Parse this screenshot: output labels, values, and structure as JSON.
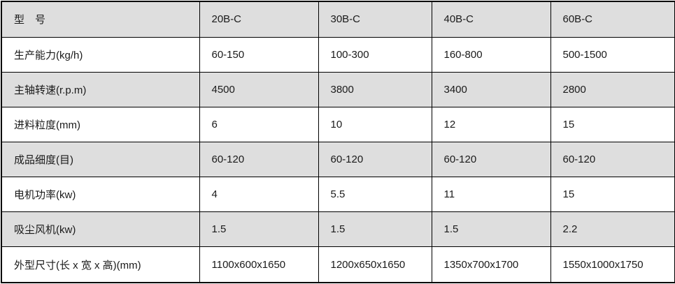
{
  "table": {
    "header": {
      "label": "型　号",
      "models": [
        "20B-C",
        "30B-C",
        "40B-C",
        "60B-C"
      ]
    },
    "rows": [
      {
        "label": "生产能力(kg/h)",
        "values": [
          "60-150",
          "100-300",
          "160-800",
          "500-1500"
        ]
      },
      {
        "label": "主轴转速(r.p.m)",
        "values": [
          "4500",
          "3800",
          "3400",
          "2800"
        ]
      },
      {
        "label": "进料粒度(mm)",
        "values": [
          "6",
          "10",
          "12",
          "15"
        ]
      },
      {
        "label": "成品细度(目)",
        "values": [
          "60-120",
          "60-120",
          "60-120",
          "60-120"
        ]
      },
      {
        "label": "电机功率(kw)",
        "values": [
          "4",
          "5.5",
          "11",
          "15"
        ]
      },
      {
        "label": "吸尘风机(kw)",
        "values": [
          "1.5",
          "1.5",
          "1.5",
          "2.2"
        ]
      },
      {
        "label": "外型尺寸(长 x 宽 x 高)(mm)",
        "values": [
          "1100x600x1650",
          "1200x650x1650",
          "1350x700x1700",
          "1550x1000x1750"
        ]
      }
    ],
    "colors": {
      "shaded_row_bg": "#dedede",
      "plain_row_bg": "#ffffff",
      "border": "#000000",
      "text": "#1a1a1a"
    }
  },
  "chart_data": {
    "type": "table",
    "title": "",
    "columns": [
      "型　号",
      "20B-C",
      "30B-C",
      "40B-C",
      "60B-C"
    ],
    "rows": [
      [
        "生产能力(kg/h)",
        "60-150",
        "100-300",
        "160-800",
        "500-1500"
      ],
      [
        "主轴转速(r.p.m)",
        "4500",
        "3800",
        "3400",
        "2800"
      ],
      [
        "进料粒度(mm)",
        "6",
        "10",
        "12",
        "15"
      ],
      [
        "成品细度(目)",
        "60-120",
        "60-120",
        "60-120",
        "60-120"
      ],
      [
        "电机功率(kw)",
        "4",
        "5.5",
        "11",
        "15"
      ],
      [
        "吸尘风机(kw)",
        "1.5",
        "1.5",
        "1.5",
        "2.2"
      ],
      [
        "外型尺寸(长 x 宽 x 高)(mm)",
        "1100x600x1650",
        "1200x650x1650",
        "1350x700x1700",
        "1550x1000x1750"
      ]
    ]
  }
}
